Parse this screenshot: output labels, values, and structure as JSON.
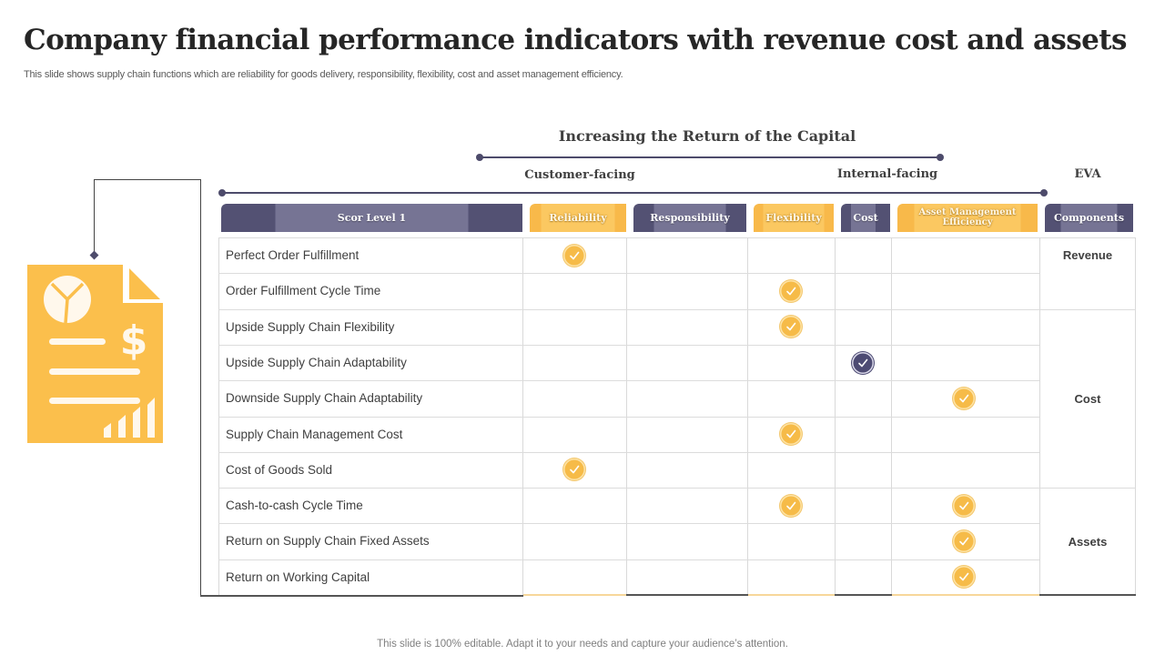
{
  "header": {
    "title": "Company financial performance indicators with revenue cost and assets",
    "subtitle": "This slide shows supply chain functions which are reliability for goods delivery, responsibility, flexibility,  cost and asset management efficiency."
  },
  "diagram": {
    "top_label": "Increasing the Return of the Capital",
    "group_labels": {
      "customer": "Customer-facing",
      "internal": "Internal-facing",
      "eva": "EVA"
    },
    "icon": "financial-report-document-icon"
  },
  "table": {
    "columns": [
      {
        "label": "Scor Level 1",
        "style": "dark"
      },
      {
        "label": "Reliability",
        "style": "gold"
      },
      {
        "label": "Responsibility",
        "style": "dark"
      },
      {
        "label": "Flexibility",
        "style": "gold"
      },
      {
        "label": "Cost",
        "style": "dark"
      },
      {
        "label": "Asset Management Efficiency",
        "style": "gold"
      },
      {
        "label": "Components",
        "style": "dark"
      }
    ],
    "rows": [
      {
        "metric": "Perfect Order Fulfillment",
        "checks": [
          "Reliability"
        ]
      },
      {
        "metric": "Order Fulfillment Cycle Time",
        "checks": [
          "Flexibility"
        ]
      },
      {
        "metric": "Upside Supply Chain Flexibility",
        "checks": [
          "Flexibility"
        ]
      },
      {
        "metric": "Upside Supply Chain Adaptability",
        "checks": [
          "Cost"
        ]
      },
      {
        "metric": "Downside Supply Chain Adaptability",
        "checks": [
          "Asset Management Efficiency"
        ]
      },
      {
        "metric": "Supply Chain Management Cost",
        "checks": [
          "Flexibility"
        ]
      },
      {
        "metric": "Cost of Goods Sold",
        "checks": [
          "Reliability"
        ]
      },
      {
        "metric": "Cash-to-cash Cycle Time",
        "checks": [
          "Flexibility",
          "Asset Management Efficiency"
        ]
      },
      {
        "metric": "Return on Supply Chain Fixed Assets",
        "checks": [
          "Asset Management Efficiency"
        ]
      },
      {
        "metric": "Return on Working Capital",
        "checks": [
          "Asset Management Efficiency"
        ]
      }
    ],
    "components": [
      {
        "label": "Revenue",
        "rows": [
          0,
          1
        ]
      },
      {
        "label": "Cost",
        "rows": [
          2,
          3,
          4,
          5,
          6
        ]
      },
      {
        "label": "Assets",
        "rows": [
          7,
          8,
          9
        ]
      }
    ]
  },
  "colors": {
    "gold": "#f6bb48",
    "navy": "#4d4b73",
    "slate": "#767494"
  },
  "footer": {
    "text": "This slide is 100% editable. Adapt it to your needs and capture your audience’s attention."
  }
}
